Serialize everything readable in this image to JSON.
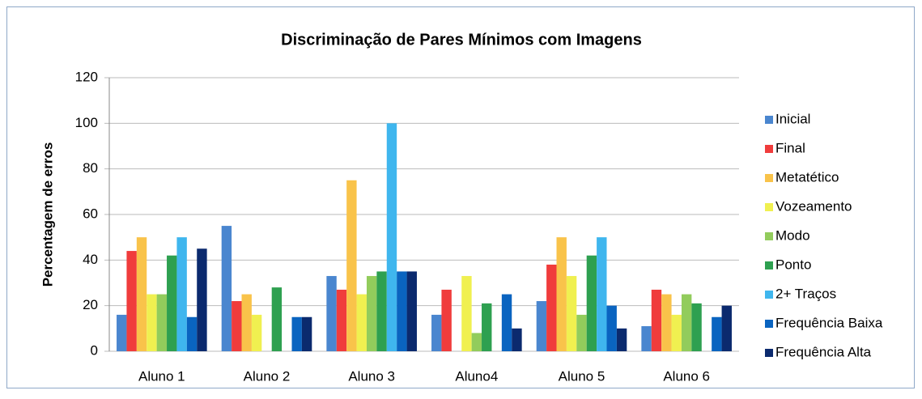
{
  "chart_data": {
    "type": "bar",
    "title": "Discriminação de Pares Mínimos com Imagens",
    "y_label": "Percentagem de erros",
    "categories": [
      "Aluno 1",
      "Aluno 2",
      "Aluno 3",
      "Aluno4",
      "Aluno 5",
      "Aluno 6"
    ],
    "series": [
      {
        "name": "Inicial",
        "color": "#4a86cf",
        "values": [
          16,
          55,
          33,
          16,
          22,
          11
        ]
      },
      {
        "name": "Final",
        "color": "#f03c3c",
        "values": [
          44,
          22,
          27,
          27,
          38,
          27
        ]
      },
      {
        "name": "Metatético",
        "color": "#f9c34a",
        "values": [
          50,
          25,
          75,
          0,
          50,
          25
        ]
      },
      {
        "name": "Vozeamento",
        "color": "#f0f050",
        "values": [
          25,
          16,
          25,
          33,
          33,
          16
        ]
      },
      {
        "name": "Modo",
        "color": "#92cc5c",
        "values": [
          25,
          0,
          33,
          8,
          16,
          25
        ]
      },
      {
        "name": "Ponto",
        "color": "#2ea050",
        "values": [
          42,
          28,
          35,
          21,
          42,
          21
        ]
      },
      {
        "name": "2+ Traços",
        "color": "#3fb6ee",
        "values": [
          50,
          0,
          100,
          0,
          50,
          0
        ]
      },
      {
        "name": "Frequência Baixa",
        "color": "#0a64c0",
        "values": [
          15,
          15,
          35,
          25,
          20,
          15
        ]
      },
      {
        "name": "Frequência Alta",
        "color": "#0b2a6e",
        "values": [
          45,
          15,
          35,
          10,
          10,
          20
        ]
      }
    ],
    "ylim": [
      0,
      120
    ],
    "yticks": [
      0,
      20,
      40,
      60,
      80,
      100,
      120
    ],
    "grid": true,
    "legend": "right"
  }
}
